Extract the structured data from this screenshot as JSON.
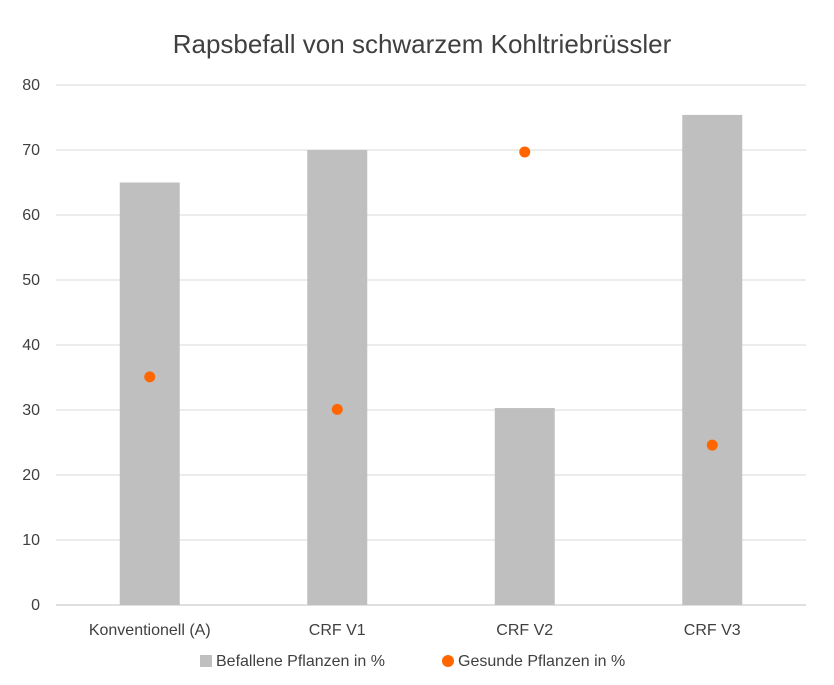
{
  "chart_data": {
    "type": "bar",
    "title": "Rapsbefall von schwarzem Kohltriebrüssler",
    "categories": [
      "Konventionell (A)",
      "CRF V1",
      "CRF V2",
      "CRF V3"
    ],
    "ylim": [
      0,
      80
    ],
    "yticks": [
      "0",
      "10",
      "20",
      "30",
      "40",
      "50",
      "60",
      "70",
      "80"
    ],
    "xlabel": "",
    "ylabel": "",
    "grid": true,
    "legend_position": "bottom",
    "series": [
      {
        "name": "Befallene Pflanzen in %",
        "kind": "bar",
        "color": "#bfbfbf",
        "values": [
          65,
          70,
          30.3,
          75.4
        ]
      },
      {
        "name": "Gesunde Pflanzen in %",
        "kind": "scatter",
        "color": "#ff6600",
        "values": [
          35.1,
          30.1,
          69.7,
          24.6
        ]
      }
    ]
  }
}
